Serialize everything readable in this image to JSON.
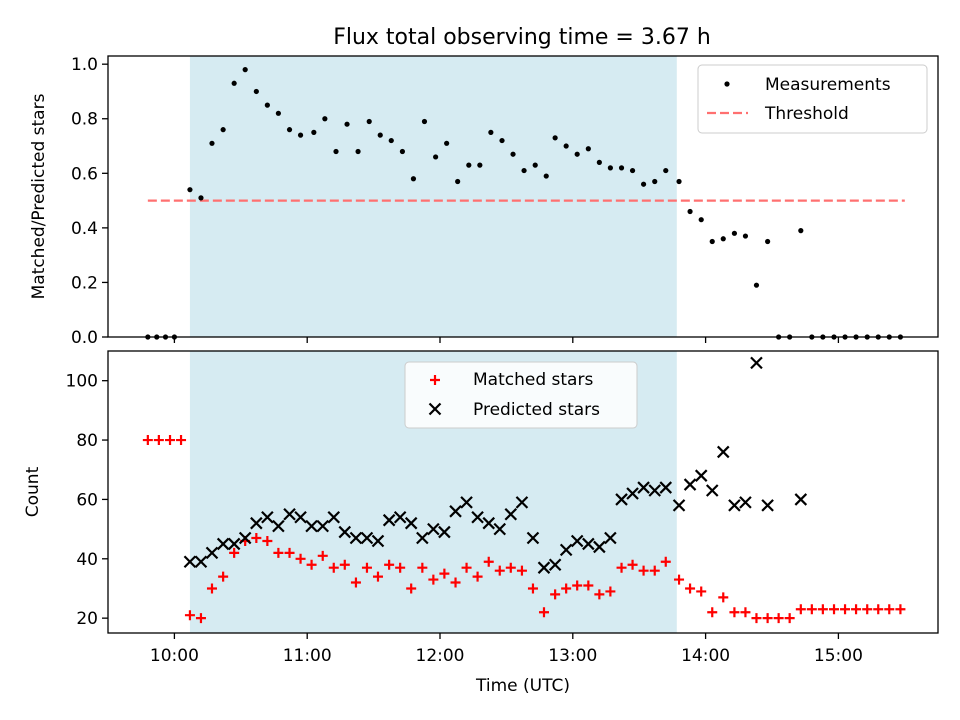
{
  "title": "Flux total observing time = 3.67 h",
  "chart_data": [
    {
      "id": "ratio",
      "type": "scatter",
      "xlabel": "",
      "ylabel": "Matched/Predicted stars",
      "xlim": [
        9.5,
        15.75
      ],
      "ylim": [
        0.0,
        1.03
      ],
      "yticks": [
        0.0,
        0.2,
        0.4,
        0.6,
        0.8,
        1.0
      ],
      "ytick_labels": [
        "0.0",
        "0.2",
        "0.4",
        "0.6",
        "0.8",
        "1.0"
      ],
      "xticks": [
        10,
        11,
        12,
        13,
        14,
        15
      ],
      "shaded_span": [
        10.117,
        13.783
      ],
      "threshold": {
        "name": "Threshold",
        "value": 0.5,
        "x_range": [
          9.8,
          15.5
        ],
        "color": "#ff7070"
      },
      "legend": {
        "placement": "top-right",
        "entries": [
          "Measurements",
          "Threshold"
        ]
      },
      "series": [
        {
          "name": "Measurements",
          "marker": "dot",
          "color": "#000000",
          "x": [
            9.8,
            9.867,
            9.933,
            10.0,
            10.117,
            10.2,
            10.283,
            10.367,
            10.45,
            10.533,
            10.617,
            10.7,
            10.783,
            10.867,
            10.95,
            11.05,
            11.133,
            11.217,
            11.3,
            11.383,
            11.467,
            11.55,
            11.633,
            11.717,
            11.8,
            11.883,
            11.967,
            12.05,
            12.133,
            12.217,
            12.3,
            12.383,
            12.467,
            12.55,
            12.633,
            12.717,
            12.8,
            12.867,
            12.95,
            13.033,
            13.117,
            13.2,
            13.283,
            13.367,
            13.45,
            13.533,
            13.617,
            13.7,
            13.8,
            13.883,
            13.967,
            14.05,
            14.133,
            14.217,
            14.3,
            14.383,
            14.467,
            14.55,
            14.633,
            14.717,
            14.8,
            14.883,
            14.967,
            15.05,
            15.133,
            15.217,
            15.3,
            15.383,
            15.467
          ],
          "y": [
            0.0,
            0.0,
            0.0,
            0.0,
            0.54,
            0.51,
            0.71,
            0.76,
            0.93,
            0.98,
            0.9,
            0.85,
            0.82,
            0.76,
            0.74,
            0.75,
            0.8,
            0.68,
            0.78,
            0.68,
            0.79,
            0.74,
            0.72,
            0.68,
            0.58,
            0.79,
            0.66,
            0.71,
            0.57,
            0.63,
            0.63,
            0.75,
            0.72,
            0.67,
            0.61,
            0.63,
            0.59,
            0.73,
            0.7,
            0.67,
            0.69,
            0.64,
            0.62,
            0.62,
            0.61,
            0.56,
            0.57,
            0.61,
            0.57,
            0.46,
            0.43,
            0.35,
            0.36,
            0.38,
            0.37,
            0.19,
            0.35,
            0.0,
            0.0,
            0.39,
            0.0,
            0.0,
            0.0,
            0.0,
            0.0,
            0.0,
            0.0,
            0.0,
            0.0
          ]
        }
      ]
    },
    {
      "id": "count",
      "type": "scatter",
      "xlabel": "Time (UTC)",
      "ylabel": "Count",
      "xlim": [
        9.5,
        15.75
      ],
      "ylim": [
        15.0,
        110.0
      ],
      "yticks": [
        20,
        40,
        60,
        80,
        100
      ],
      "ytick_labels": [
        "20",
        "40",
        "60",
        "80",
        "100"
      ],
      "xticks": [
        10,
        11,
        12,
        13,
        14,
        15
      ],
      "xtick_labels": [
        "10:00",
        "11:00",
        "12:00",
        "13:00",
        "14:00",
        "15:00"
      ],
      "shaded_span": [
        10.117,
        13.783
      ],
      "legend": {
        "placement": "top-center",
        "entries": [
          "Matched stars",
          "Predicted stars"
        ]
      },
      "series": [
        {
          "name": "Matched stars",
          "marker": "plus",
          "color": "#ff0000",
          "x": [
            9.8,
            9.883,
            9.967,
            10.05,
            10.117,
            10.2,
            10.283,
            10.367,
            10.45,
            10.533,
            10.617,
            10.7,
            10.783,
            10.867,
            10.95,
            11.033,
            11.117,
            11.2,
            11.283,
            11.367,
            11.45,
            11.533,
            11.617,
            11.7,
            11.783,
            11.867,
            11.95,
            12.033,
            12.117,
            12.2,
            12.283,
            12.367,
            12.45,
            12.533,
            12.617,
            12.7,
            12.783,
            12.867,
            12.95,
            13.033,
            13.117,
            13.2,
            13.283,
            13.367,
            13.45,
            13.533,
            13.617,
            13.7,
            13.8,
            13.883,
            13.967,
            14.05,
            14.133,
            14.217,
            14.3,
            14.383,
            14.467,
            14.55,
            14.633,
            14.717,
            14.8,
            14.883,
            14.967,
            15.05,
            15.133,
            15.217,
            15.3,
            15.383,
            15.467
          ],
          "y": [
            80,
            80,
            80,
            80,
            21,
            20,
            30,
            34,
            42,
            46,
            47,
            46,
            42,
            42,
            40,
            38,
            41,
            37,
            38,
            32,
            37,
            34,
            38,
            37,
            30,
            37,
            33,
            35,
            32,
            37,
            34,
            39,
            36,
            37,
            36,
            30,
            22,
            28,
            30,
            31,
            31,
            28,
            29,
            37,
            38,
            36,
            36,
            39,
            33,
            30,
            29,
            22,
            27,
            22,
            22,
            20,
            20,
            20,
            20,
            23,
            23,
            23,
            23,
            23,
            23,
            23,
            23,
            23,
            23
          ]
        },
        {
          "name": "Predicted stars",
          "marker": "x",
          "color": "#000000",
          "x": [
            10.117,
            10.2,
            10.283,
            10.367,
            10.45,
            10.533,
            10.617,
            10.7,
            10.783,
            10.867,
            10.95,
            11.033,
            11.117,
            11.2,
            11.283,
            11.367,
            11.45,
            11.533,
            11.617,
            11.7,
            11.783,
            11.867,
            11.95,
            12.033,
            12.117,
            12.2,
            12.283,
            12.367,
            12.45,
            12.533,
            12.617,
            12.7,
            12.783,
            12.867,
            12.95,
            13.033,
            13.117,
            13.2,
            13.283,
            13.367,
            13.45,
            13.533,
            13.617,
            13.7,
            13.8,
            13.883,
            13.967,
            14.05,
            14.133,
            14.217,
            14.3,
            14.383,
            14.467,
            14.717
          ],
          "y": [
            39,
            39,
            42,
            45,
            45,
            47,
            52,
            54,
            51,
            55,
            54,
            51,
            51,
            54,
            49,
            47,
            47,
            46,
            53,
            54,
            52,
            47,
            50,
            49,
            56,
            59,
            54,
            52,
            50,
            55,
            59,
            47,
            37,
            38,
            43,
            46,
            45,
            44,
            47,
            60,
            62,
            64,
            63,
            64,
            58,
            65,
            68,
            63,
            76,
            58,
            59,
            106,
            58,
            60
          ]
        }
      ]
    }
  ]
}
